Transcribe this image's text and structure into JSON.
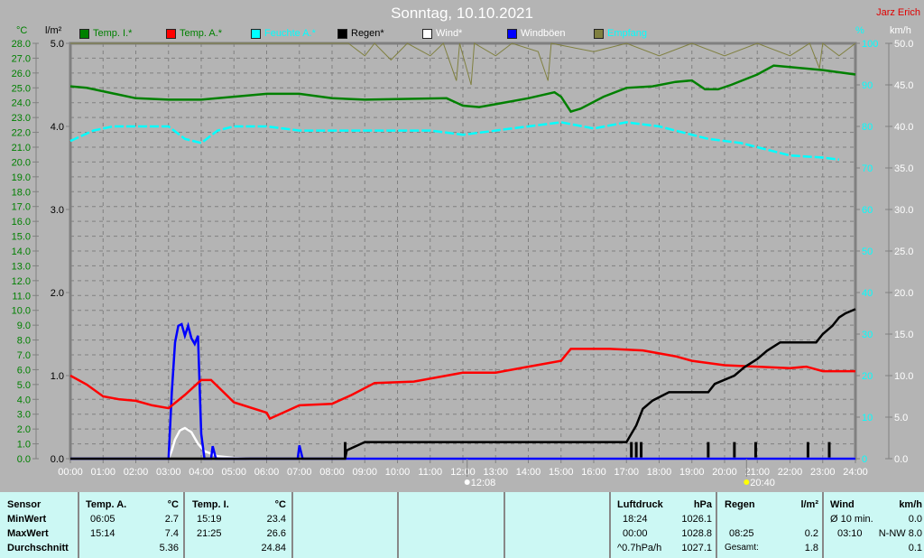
{
  "title": "Sonntag, 10.10.2021",
  "author": "Jarz Erich",
  "legend": [
    {
      "label": "Temp. I.*",
      "color": "#008000",
      "text_color": "#008000"
    },
    {
      "label": "Temp. A.*",
      "color": "#ff0000",
      "text_color": "#008000"
    },
    {
      "label": "Feuchte A.*",
      "color": "#00ffff",
      "text_color": "#00ffff"
    },
    {
      "label": "Regen*",
      "color": "#000000",
      "text_color": "#000000"
    },
    {
      "label": "Wind*",
      "color": "#ffffff",
      "text_color": "#ffffff"
    },
    {
      "label": "Windböen",
      "color": "#0000ff",
      "text_color": "#ffffff"
    },
    {
      "label": "Empfang",
      "color": "#808040",
      "text_color": "#00ffff"
    }
  ],
  "chart_data": {
    "type": "line",
    "title": "Sonntag, 10.10.2021",
    "x_unit": "time of day (h)",
    "x_ticks": [
      "00:00",
      "01:00",
      "02:00",
      "03:00",
      "04:00",
      "05:00",
      "06:00",
      "07:00",
      "08:00",
      "09:00",
      "10:00",
      "11:00",
      "12:00",
      "13:00",
      "14:00",
      "15:00",
      "16:00",
      "17:00",
      "18:00",
      "19:00",
      "20:00",
      "21:00",
      "22:00",
      "23:00",
      "24:00"
    ],
    "axes": {
      "temp": {
        "unit": "°C",
        "range": [
          0,
          28
        ],
        "step": 1,
        "color": "#008000"
      },
      "rain": {
        "unit": "l/m²",
        "range": [
          0,
          5
        ],
        "ticks": [
          "0.0",
          "1.0",
          "2.0",
          "3.0",
          "4.0",
          "5.0"
        ],
        "color": "#000000"
      },
      "humidity": {
        "unit": "%",
        "range": [
          0,
          100
        ],
        "ticks": [
          "0",
          "10",
          "20",
          "30",
          "40",
          "50",
          "60",
          "70",
          "80",
          "90",
          "100"
        ],
        "color": "#00ffff"
      },
      "wind": {
        "unit": "km/h",
        "range": [
          0,
          50
        ],
        "ticks": [
          "0.0",
          "5.0",
          "10.0",
          "15.0",
          "20.0",
          "25.0",
          "30.0",
          "35.0",
          "40.0",
          "45.0",
          "50.0"
        ],
        "color": "#ffffff"
      }
    },
    "grid": true,
    "series": [
      {
        "name": "Temp. I.*",
        "axis": "temp",
        "color": "#008000",
        "points": [
          [
            0,
            25.1
          ],
          [
            0.5,
            25.0
          ],
          [
            2,
            24.3
          ],
          [
            3,
            24.2
          ],
          [
            4,
            24.2
          ],
          [
            5,
            24.4
          ],
          [
            6,
            24.6
          ],
          [
            7,
            24.6
          ],
          [
            8,
            24.3
          ],
          [
            9,
            24.2
          ],
          [
            11.5,
            24.3
          ],
          [
            12,
            23.8
          ],
          [
            12.5,
            23.7
          ],
          [
            13,
            23.9
          ],
          [
            14,
            24.3
          ],
          [
            14.8,
            24.7
          ],
          [
            15,
            24.4
          ],
          [
            15.3,
            23.4
          ],
          [
            15.6,
            23.6
          ],
          [
            16.3,
            24.4
          ],
          [
            17,
            25.0
          ],
          [
            17.8,
            25.1
          ],
          [
            18.5,
            25.4
          ],
          [
            19,
            25.5
          ],
          [
            19.4,
            24.9
          ],
          [
            19.8,
            24.9
          ],
          [
            20.2,
            25.2
          ],
          [
            21,
            25.9
          ],
          [
            21.5,
            26.5
          ],
          [
            22,
            26.4
          ],
          [
            23,
            26.2
          ],
          [
            24,
            25.9
          ]
        ]
      },
      {
        "name": "Temp. A.*",
        "axis": "temp",
        "color": "#ff0000",
        "points": [
          [
            0,
            5.6
          ],
          [
            0.5,
            5.0
          ],
          [
            1,
            4.2
          ],
          [
            1.5,
            4.0
          ],
          [
            2,
            3.9
          ],
          [
            2.5,
            3.6
          ],
          [
            3,
            3.4
          ],
          [
            3.5,
            4.3
          ],
          [
            4,
            5.3
          ],
          [
            4.3,
            5.3
          ],
          [
            5,
            3.8
          ],
          [
            6,
            3.1
          ],
          [
            6.1,
            2.7
          ],
          [
            6.5,
            3.1
          ],
          [
            7,
            3.6
          ],
          [
            8,
            3.7
          ],
          [
            8.6,
            4.3
          ],
          [
            9.3,
            5.1
          ],
          [
            10.5,
            5.2
          ],
          [
            11.5,
            5.6
          ],
          [
            12,
            5.8
          ],
          [
            13,
            5.8
          ],
          [
            14,
            6.2
          ],
          [
            15,
            6.6
          ],
          [
            15.3,
            7.4
          ],
          [
            16.5,
            7.4
          ],
          [
            17.5,
            7.3
          ],
          [
            18.5,
            6.9
          ],
          [
            19,
            6.6
          ],
          [
            20,
            6.3
          ],
          [
            21,
            6.2
          ],
          [
            22,
            6.1
          ],
          [
            22.5,
            6.2
          ],
          [
            23,
            5.9
          ],
          [
            24,
            5.9
          ]
        ]
      },
      {
        "name": "Feuchte A.*",
        "axis": "humidity",
        "color": "#00ffff",
        "points": [
          [
            0,
            76.5
          ],
          [
            0.7,
            79
          ],
          [
            1.3,
            80
          ],
          [
            3,
            80
          ],
          [
            3.5,
            77
          ],
          [
            4,
            76
          ],
          [
            4.5,
            79
          ],
          [
            5,
            80
          ],
          [
            6,
            80
          ],
          [
            7,
            79
          ],
          [
            8,
            79
          ],
          [
            9,
            79
          ],
          [
            11,
            79
          ],
          [
            12,
            78
          ],
          [
            13,
            79
          ],
          [
            14,
            80
          ],
          [
            15,
            81
          ],
          [
            16,
            79.5
          ],
          [
            17,
            81
          ],
          [
            18,
            80
          ],
          [
            18.5,
            79
          ],
          [
            19.5,
            77
          ],
          [
            20.5,
            76
          ],
          [
            21,
            75
          ],
          [
            22,
            73
          ],
          [
            23,
            72.5
          ],
          [
            23.5,
            72
          ]
        ]
      },
      {
        "name": "Regen*",
        "axis": "rain",
        "color": "#000000",
        "points": [
          [
            0,
            0
          ],
          [
            8.4,
            0
          ],
          [
            8.45,
            0.1
          ],
          [
            9,
            0.2
          ],
          [
            17.0,
            0.2
          ],
          [
            17.3,
            0.4
          ],
          [
            17.5,
            0.6
          ],
          [
            17.8,
            0.7
          ],
          [
            18.3,
            0.8
          ],
          [
            19.5,
            0.8
          ],
          [
            19.7,
            0.9
          ],
          [
            20.3,
            1.0
          ],
          [
            20.6,
            1.1
          ],
          [
            21,
            1.2
          ],
          [
            21.3,
            1.3
          ],
          [
            21.7,
            1.4
          ],
          [
            22.8,
            1.4
          ],
          [
            23,
            1.5
          ],
          [
            23.3,
            1.6
          ],
          [
            23.5,
            1.7
          ],
          [
            23.7,
            1.75
          ],
          [
            24,
            1.8
          ]
        ]
      },
      {
        "name": "Wind*",
        "axis": "wind",
        "color": "#ffffff",
        "points": [
          [
            0,
            0
          ],
          [
            3.0,
            0
          ],
          [
            3.1,
            1
          ],
          [
            3.2,
            2.3
          ],
          [
            3.35,
            3.4
          ],
          [
            3.5,
            3.7
          ],
          [
            3.7,
            3.2
          ],
          [
            3.9,
            1.8
          ],
          [
            4.1,
            0.9
          ],
          [
            4.5,
            0.3
          ],
          [
            5.0,
            0.1
          ],
          [
            5.5,
            0
          ],
          [
            24,
            0
          ]
        ]
      },
      {
        "name": "Windböen",
        "axis": "wind",
        "color": "#0000ff",
        "points": [
          [
            0,
            0
          ],
          [
            3.0,
            0
          ],
          [
            3.1,
            8
          ],
          [
            3.2,
            14
          ],
          [
            3.3,
            16
          ],
          [
            3.4,
            16.2
          ],
          [
            3.5,
            14.8
          ],
          [
            3.6,
            16
          ],
          [
            3.7,
            14.5
          ],
          [
            3.8,
            13.8
          ],
          [
            3.9,
            14.8
          ],
          [
            4.0,
            3
          ],
          [
            4.1,
            0
          ],
          [
            4.3,
            0
          ],
          [
            4.35,
            1.5
          ],
          [
            4.45,
            0
          ],
          [
            6.95,
            0
          ],
          [
            7.0,
            1.6
          ],
          [
            7.1,
            0
          ],
          [
            24,
            0
          ]
        ]
      },
      {
        "name": "Empfang",
        "axis": "humidity",
        "color": "#808040",
        "points": [
          [
            0,
            100
          ],
          [
            8.5,
            100
          ],
          [
            9,
            97
          ],
          [
            9.3,
            100
          ],
          [
            9.8,
            96
          ],
          [
            10.3,
            100
          ],
          [
            11,
            97
          ],
          [
            11.4,
            100
          ],
          [
            11.8,
            91
          ],
          [
            11.9,
            100
          ],
          [
            12.25,
            90
          ],
          [
            12.35,
            100
          ],
          [
            13,
            97
          ],
          [
            13.5,
            100
          ],
          [
            14.3,
            98
          ],
          [
            14.6,
            91
          ],
          [
            14.7,
            100
          ],
          [
            16,
            98
          ],
          [
            17,
            100
          ],
          [
            18,
            97
          ],
          [
            19,
            100
          ],
          [
            20,
            97
          ],
          [
            21,
            100
          ],
          [
            22,
            97
          ],
          [
            22.6,
            100
          ],
          [
            22.9,
            94
          ],
          [
            23.0,
            100
          ],
          [
            23.5,
            97
          ],
          [
            24,
            100
          ]
        ]
      }
    ],
    "rain_events": {
      "axis": "rain",
      "color": "#000000",
      "points": [
        [
          8.4,
          0.2
        ],
        [
          17.15,
          0.2
        ],
        [
          17.3,
          0.2
        ],
        [
          17.45,
          0.2
        ],
        [
          19.5,
          0.2
        ],
        [
          20.3,
          0.2
        ],
        [
          20.95,
          0.2
        ],
        [
          22.55,
          0.2
        ],
        [
          23.2,
          0.2
        ]
      ]
    },
    "annotations": [
      {
        "label": "12:08",
        "time": 12.13,
        "icon": "sunrise-icon"
      },
      {
        "label": "20:40",
        "time": 20.67,
        "icon": "sunset-icon"
      }
    ]
  },
  "table": {
    "sensor": {
      "header": "Sensor",
      "rows": [
        "MinWert",
        "MaxWert",
        "Durchschnitt"
      ]
    },
    "temp_a": {
      "header": "Temp. A.",
      "unit": "°C",
      "min_time": "06:05",
      "min": "2.7",
      "max_time": "15:14",
      "max": "7.4",
      "avg": "5.36"
    },
    "temp_i": {
      "header": "Temp. I.",
      "unit": "°C",
      "min_time": "15:19",
      "min": "23.4",
      "max_time": "21:25",
      "max": "26.6",
      "avg": "24.84"
    },
    "pressure": {
      "header": "Luftdruck",
      "unit": "hPa",
      "min_time": "18:24",
      "min": "1026.1",
      "max_time": "00:00",
      "max": "1028.8",
      "trend": "^0.7hPa/h",
      "avg": "1027.1"
    },
    "rain": {
      "header": "Regen",
      "unit": "l/m²",
      "max_time": "08:25",
      "max": "0.2",
      "total_label": "Gesamt:",
      "total": "1.8"
    },
    "wind": {
      "header": "Wind",
      "unit": "km/h",
      "avg_label": "Ø 10 min.",
      "avg": "0.0",
      "max_time": "03:10",
      "max": "N-NW 8.0",
      "day_avg": "0.1"
    }
  }
}
